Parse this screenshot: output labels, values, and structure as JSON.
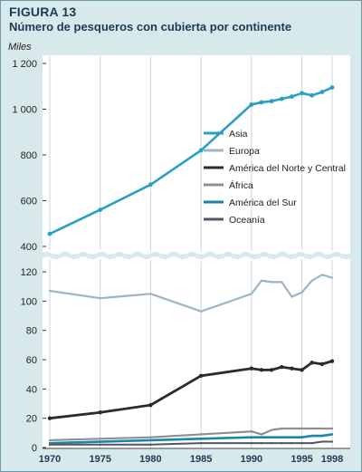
{
  "figure": {
    "label": "FIGURA 13",
    "title": "Número de pesqueros con cubierta por continente"
  },
  "chart_data": {
    "type": "line",
    "title": "Número de pesqueros con cubierta por continente",
    "unit": "Miles",
    "xlabel": "",
    "ylabel": "Miles",
    "x_tick_labels": [
      "1970",
      "1975",
      "1980",
      "1985",
      "1990",
      "1995",
      "1998"
    ],
    "broken_axis": true,
    "upper_panel": {
      "ylim": [
        400,
        1200
      ],
      "ticks": [
        "400",
        "600",
        "800",
        "1 000",
        "1 200"
      ],
      "tick_values": [
        400,
        600,
        800,
        1000,
        1200
      ]
    },
    "lower_panel": {
      "ylim": [
        0,
        125
      ],
      "ticks": [
        "0",
        "20",
        "40",
        "60",
        "80",
        "100",
        "120"
      ],
      "tick_values": [
        0,
        20,
        40,
        60,
        80,
        100,
        120
      ]
    },
    "grid": "vertical lines at 1975, 1980, 1985, 1995",
    "legend_position": "upper-right",
    "x": [
      1970,
      1975,
      1980,
      1985,
      1990,
      1991,
      1992,
      1993,
      1994,
      1995,
      1996,
      1997,
      1998
    ],
    "series": [
      {
        "name": "Asia",
        "panel": "upper",
        "color": "#2a9fc4",
        "values": [
          455,
          560,
          670,
          820,
          1020,
          1030,
          1035,
          1045,
          1055,
          1070,
          1060,
          1075,
          1095
        ]
      },
      {
        "name": "Europa",
        "panel": "lower",
        "color": "#9bb6c3",
        "values": [
          107,
          102,
          105,
          93,
          105,
          114,
          113,
          113,
          103,
          106,
          114,
          118,
          116
        ]
      },
      {
        "name": "América del Norte y Central",
        "panel": "lower",
        "color": "#2b2b2b",
        "values": [
          20,
          24,
          29,
          49,
          54,
          53,
          53,
          55,
          54,
          53,
          58,
          57,
          59
        ]
      },
      {
        "name": "África",
        "panel": "lower",
        "color": "#8f8f8f",
        "values": [
          5,
          6,
          7,
          9,
          11,
          9,
          12,
          13,
          13,
          13,
          13,
          13,
          13
        ]
      },
      {
        "name": "América del Sur",
        "panel": "lower",
        "color": "#1b86a7",
        "values": [
          3,
          4,
          5,
          6,
          7,
          7,
          7,
          7,
          7,
          7,
          8,
          8,
          9
        ]
      },
      {
        "name": "Oceanía",
        "panel": "lower",
        "color": "#555566",
        "values": [
          2,
          2,
          2,
          3,
          3,
          3,
          3,
          3,
          3,
          3,
          3,
          4,
          4
        ]
      }
    ]
  }
}
